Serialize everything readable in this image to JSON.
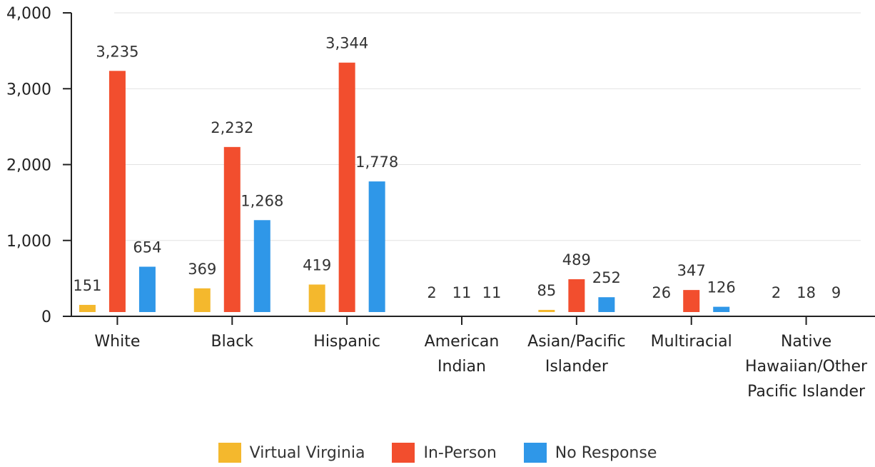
{
  "chart_data": {
    "type": "bar",
    "title": "",
    "xlabel": "",
    "ylabel": "",
    "ylim": [
      0,
      4000
    ],
    "yticks": [
      "0",
      "1,000",
      "2,000",
      "3,000",
      "4,000"
    ],
    "ytick_values": [
      0,
      1000,
      2000,
      3000,
      4000
    ],
    "grid": true,
    "legend_position": "bottom-center",
    "categories": [
      [
        "White"
      ],
      [
        "Black"
      ],
      [
        "Hispanic"
      ],
      [
        "American",
        "Indian"
      ],
      [
        "Asian/Pacific",
        "Islander"
      ],
      [
        "Multiracial"
      ],
      [
        "Native",
        "Hawaiian/Other",
        "Pacific Islander"
      ]
    ],
    "series": [
      {
        "name": "Virtual Virginia",
        "color": "#F4B82D",
        "values": [
          151,
          369,
          419,
          2,
          85,
          26,
          2
        ],
        "labels": [
          "151",
          "369",
          "419",
          "2",
          "85",
          "26",
          "2"
        ]
      },
      {
        "name": "In-Person",
        "color": "#F24E2E",
        "values": [
          3235,
          2232,
          3344,
          11,
          489,
          347,
          18
        ],
        "labels": [
          "3,235",
          "2,232",
          "3,344",
          "11",
          "489",
          "347",
          "18"
        ]
      },
      {
        "name": "No Response",
        "color": "#2F97E8",
        "values": [
          654,
          1268,
          1778,
          11,
          252,
          126,
          9
        ],
        "labels": [
          "654",
          "1,268",
          "1,778",
          "11",
          "252",
          "126",
          "9"
        ]
      }
    ]
  }
}
